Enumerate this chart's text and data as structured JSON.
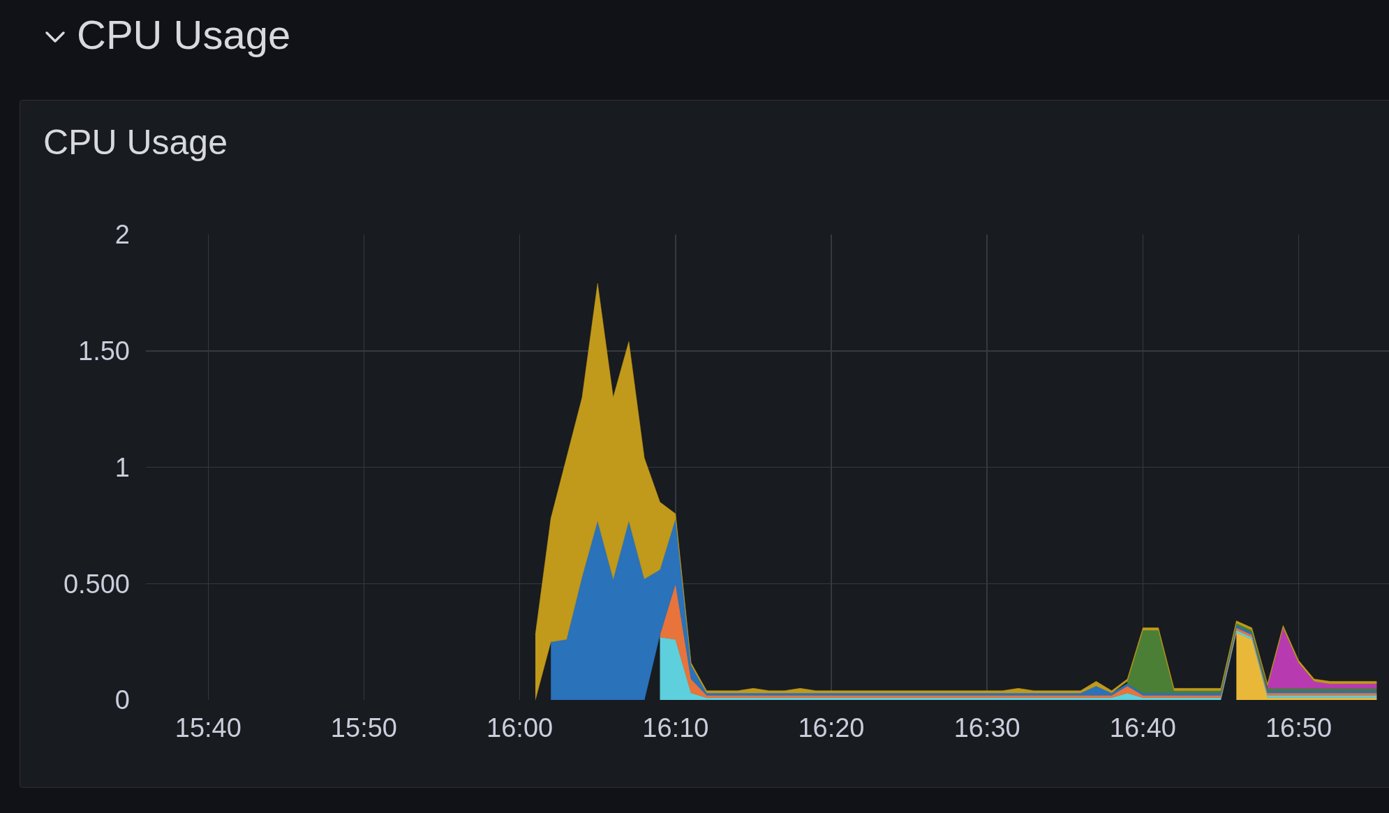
{
  "chart_data": {
    "type": "area",
    "title": "CPU Usage",
    "subtitle": "CPU Usage",
    "stacked": true,
    "grid": true,
    "x": [
      16.0167,
      16.0333,
      16.05,
      16.0667,
      16.0833,
      16.1,
      16.1167,
      16.1333,
      16.15,
      16.1667,
      16.1833,
      16.2,
      16.2167,
      16.2333,
      16.25,
      16.2667,
      16.2833,
      16.3,
      16.3167,
      16.3333,
      16.35,
      16.3667,
      16.3833,
      16.4,
      16.4167,
      16.4333,
      16.45,
      16.4667,
      16.4833,
      16.5,
      16.5167,
      16.5333,
      16.55,
      16.5667,
      16.5833,
      16.6,
      16.6167,
      16.6333,
      16.65,
      16.6667,
      16.6833,
      16.7,
      16.7167,
      16.7333,
      16.75,
      16.7667,
      16.7833,
      16.8,
      16.8167,
      16.8333,
      16.85,
      16.8667,
      16.8833,
      16.9,
      16.9167
    ],
    "series": [
      {
        "color": "#eab839",
        "values": [
          null,
          null,
          null,
          null,
          null,
          null,
          null,
          null,
          null,
          null,
          null,
          null,
          null,
          null,
          null,
          null,
          null,
          null,
          null,
          null,
          null,
          null,
          null,
          null,
          null,
          null,
          null,
          null,
          null,
          null,
          null,
          null,
          null,
          null,
          null,
          null,
          null,
          null,
          null,
          null,
          null,
          null,
          null,
          null,
          null,
          0.29,
          0.26,
          0.01,
          0.01,
          0.01,
          0.01,
          0.01,
          0.01,
          0.01,
          0.01
        ]
      },
      {
        "color": "#5ecfdc",
        "values": [
          null,
          null,
          null,
          null,
          null,
          null,
          null,
          null,
          0.27,
          0.26,
          0.03,
          0.01,
          0.01,
          0.01,
          0.01,
          0.01,
          0.01,
          0.01,
          0.01,
          0.01,
          0.01,
          0.01,
          0.01,
          0.01,
          0.01,
          0.01,
          0.01,
          0.01,
          0.01,
          0.01,
          0.01,
          0.01,
          0.01,
          0.01,
          0.01,
          0.01,
          0.01,
          0.01,
          0.03,
          0.01,
          0.01,
          0.01,
          0.01,
          0.01,
          0.01,
          0.01,
          0.01,
          0.01,
          0.01,
          0.01,
          0.01,
          0.01,
          0.01,
          0.01,
          0.01
        ]
      },
      {
        "color": "#e8743b",
        "values": [
          null,
          null,
          null,
          null,
          null,
          null,
          null,
          null,
          0.01,
          0.24,
          0.06,
          0.01,
          0.01,
          0.01,
          0.01,
          0.01,
          0.01,
          0.01,
          0.01,
          0.01,
          0.01,
          0.01,
          0.01,
          0.01,
          0.01,
          0.01,
          0.01,
          0.01,
          0.01,
          0.01,
          0.01,
          0.01,
          0.01,
          0.01,
          0.01,
          0.01,
          0.01,
          0.01,
          0.03,
          0.01,
          0.01,
          0.01,
          0.01,
          0.01,
          0.01,
          0.01,
          0.01,
          0.01,
          0.01,
          0.01,
          0.01,
          0.01,
          0.01,
          0.01,
          0.01
        ]
      },
      {
        "color": "#2a72ba",
        "values": [
          null,
          0.25,
          0.26,
          0.53,
          0.77,
          0.52,
          0.77,
          0.52,
          0.28,
          0.28,
          0.06,
          0.01,
          0.01,
          0.01,
          0.01,
          0.01,
          0.01,
          0.01,
          0.01,
          0.01,
          0.01,
          0.01,
          0.01,
          0.01,
          0.01,
          0.01,
          0.01,
          0.01,
          0.01,
          0.01,
          0.01,
          0.01,
          0.01,
          0.01,
          0.01,
          0.01,
          0.04,
          0.01,
          0.01,
          0.01,
          0.01,
          0.01,
          0.01,
          0.01,
          0.01,
          0.01,
          0.01,
          0.01,
          0.01,
          0.01,
          0.01,
          0.01,
          0.01,
          0.01,
          0.01
        ]
      },
      {
        "color": "#4b7f36",
        "values": [
          null,
          null,
          null,
          null,
          null,
          null,
          null,
          null,
          null,
          null,
          null,
          null,
          null,
          null,
          null,
          null,
          null,
          null,
          null,
          null,
          null,
          null,
          null,
          null,
          null,
          null,
          null,
          null,
          null,
          null,
          null,
          null,
          null,
          null,
          null,
          null,
          null,
          null,
          0.01,
          0.27,
          0.27,
          0.01,
          0.01,
          0.01,
          0.01,
          0.01,
          0.01,
          0.01,
          0.01,
          0.01,
          0.01,
          0.01,
          0.01,
          0.01,
          0.01
        ]
      },
      {
        "color": "#b83ab0",
        "values": [
          null,
          null,
          null,
          null,
          null,
          null,
          null,
          null,
          null,
          null,
          null,
          null,
          null,
          null,
          null,
          null,
          null,
          null,
          null,
          null,
          null,
          null,
          null,
          null,
          null,
          null,
          null,
          null,
          null,
          null,
          null,
          null,
          null,
          null,
          null,
          null,
          null,
          null,
          null,
          null,
          null,
          null,
          null,
          null,
          null,
          null,
          null,
          0.01,
          0.26,
          0.11,
          0.03,
          0.02,
          0.02,
          0.02,
          0.02
        ]
      },
      {
        "color": "#c19a1b",
        "values": [
          0.28,
          0.53,
          0.78,
          0.77,
          1.02,
          0.78,
          0.77,
          0.52,
          0.29,
          0.02,
          0.01,
          0.01,
          0.01,
          0.01,
          0.02,
          0.01,
          0.01,
          0.02,
          0.01,
          0.01,
          0.01,
          0.01,
          0.01,
          0.01,
          0.01,
          0.01,
          0.01,
          0.01,
          0.01,
          0.01,
          0.01,
          0.02,
          0.01,
          0.01,
          0.01,
          0.01,
          0.02,
          0.01,
          0.01,
          0.01,
          0.01,
          0.01,
          0.01,
          0.01,
          0.01,
          0.01,
          0.01,
          0.01,
          0.01,
          0.01,
          0.01,
          0.01,
          0.01,
          0.01,
          0.01
        ]
      }
    ],
    "xlim": [
      15.6,
      16.93
    ],
    "xticks": [
      {
        "value": 15.6667,
        "label": "15:40"
      },
      {
        "value": 15.8333,
        "label": "15:50"
      },
      {
        "value": 16,
        "label": "16:00"
      },
      {
        "value": 16.1667,
        "label": "16:10"
      },
      {
        "value": 16.3333,
        "label": "16:20"
      },
      {
        "value": 16.5,
        "label": "16:30"
      },
      {
        "value": 16.6667,
        "label": "16:40"
      },
      {
        "value": 16.8333,
        "label": "16:50"
      }
    ],
    "ylim": [
      0,
      2
    ],
    "yticks": [
      0,
      {
        "value": 0.5,
        "label": "0.500"
      },
      1,
      {
        "value": 1.5,
        "label": "1.50"
      },
      2
    ]
  }
}
